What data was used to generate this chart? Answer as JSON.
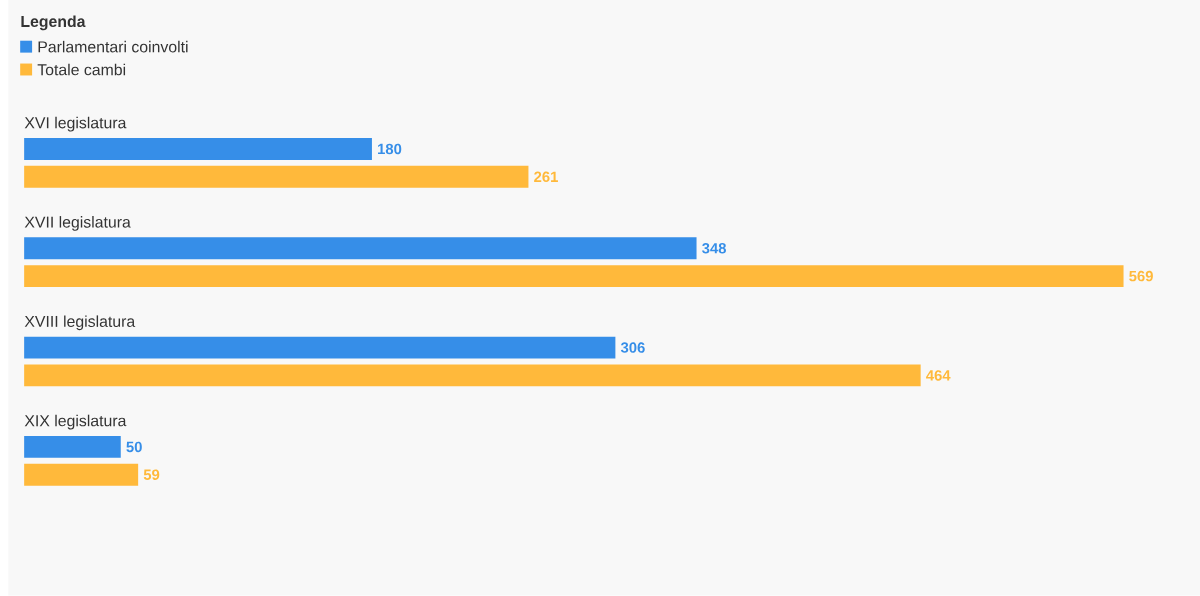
{
  "chart_data": {
    "type": "bar",
    "orientation": "horizontal",
    "legend_title": "Legenda",
    "legend": "top left",
    "data_labels": true,
    "categories": [
      "XVI legislatura",
      "XVII legislatura",
      "XVIII legislatura",
      "XIX legislatura"
    ],
    "series": [
      {
        "name": "Parlamentari coinvolti",
        "color": "#368ee8",
        "values": [
          180,
          348,
          306,
          50
        ]
      },
      {
        "name": "Totale cambi",
        "color": "#ffb93b",
        "values": [
          261,
          569,
          464,
          59
        ]
      }
    ]
  }
}
